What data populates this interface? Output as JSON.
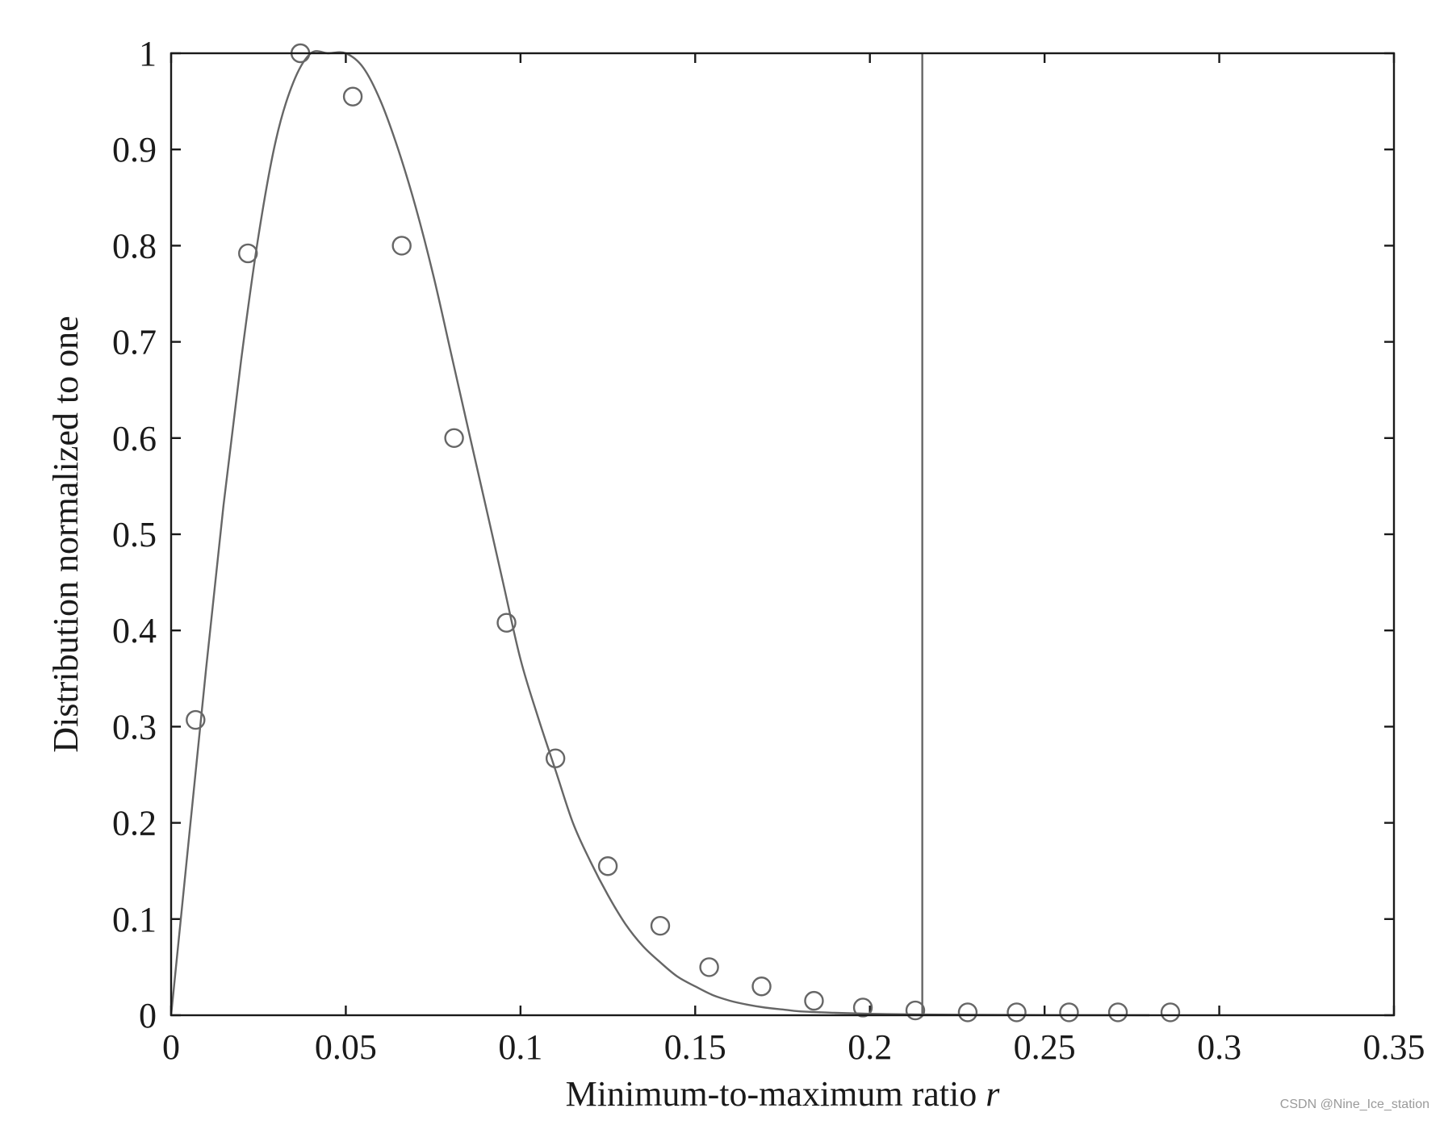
{
  "chart_data": {
    "type": "scatter",
    "xlabel": "Minimum-to-maximum ratio",
    "xlabel_var": "r",
    "ylabel": "Distribution normalized to one",
    "xlim": [
      0,
      0.35
    ],
    "ylim": [
      0,
      1
    ],
    "x_ticks": [
      "0",
      "0.05",
      "0.1",
      "0.15",
      "0.2",
      "0.25",
      "0.3",
      "0.35"
    ],
    "y_ticks": [
      "0",
      "0.1",
      "0.2",
      "0.3",
      "0.4",
      "0.5",
      "0.6",
      "0.7",
      "0.8",
      "0.9",
      "1"
    ],
    "grid": false,
    "vertical_line_x": 0.215,
    "curve": {
      "x": [
        0,
        0.005,
        0.01,
        0.015,
        0.02,
        0.025,
        0.03,
        0.035,
        0.04,
        0.045,
        0.05,
        0.055,
        0.06,
        0.065,
        0.07,
        0.075,
        0.08,
        0.085,
        0.09,
        0.095,
        0.1,
        0.105,
        0.11,
        0.115,
        0.12,
        0.125,
        0.13,
        0.135,
        0.14,
        0.145,
        0.15,
        0.155,
        0.16,
        0.165,
        0.17,
        0.175,
        0.18,
        0.19,
        0.2,
        0.21,
        0.22,
        0.23,
        0.24,
        0.25,
        0.26,
        0.27,
        0.28
      ],
      "y": [
        0,
        0.18,
        0.36,
        0.53,
        0.68,
        0.81,
        0.91,
        0.97,
        1.0,
        1.0,
        1.0,
        0.985,
        0.95,
        0.9,
        0.84,
        0.77,
        0.69,
        0.61,
        0.53,
        0.45,
        0.37,
        0.31,
        0.255,
        0.2,
        0.16,
        0.125,
        0.095,
        0.072,
        0.055,
        0.04,
        0.03,
        0.021,
        0.015,
        0.011,
        0.008,
        0.006,
        0.004,
        0.0025,
        0.0015,
        0.001,
        0.0007,
        0.0005,
        0.0003,
        0.0002,
        0.0001,
        0.0001,
        0.0
      ]
    },
    "points": {
      "x": [
        0.007,
        0.022,
        0.037,
        0.052,
        0.066,
        0.081,
        0.096,
        0.11,
        0.125,
        0.14,
        0.154,
        0.169,
        0.184,
        0.198,
        0.213,
        0.228,
        0.242,
        0.257,
        0.271,
        0.286
      ],
      "y": [
        0.307,
        0.792,
        1.0,
        0.955,
        0.8,
        0.6,
        0.408,
        0.267,
        0.155,
        0.093,
        0.05,
        0.03,
        0.015,
        0.008,
        0.005,
        0.003,
        0.003,
        0.003,
        0.003,
        0.003
      ]
    },
    "colors": {
      "line": "#666666",
      "axis": "#1a1a1a"
    }
  },
  "watermark": "CSDN @Nine_Ice_station"
}
